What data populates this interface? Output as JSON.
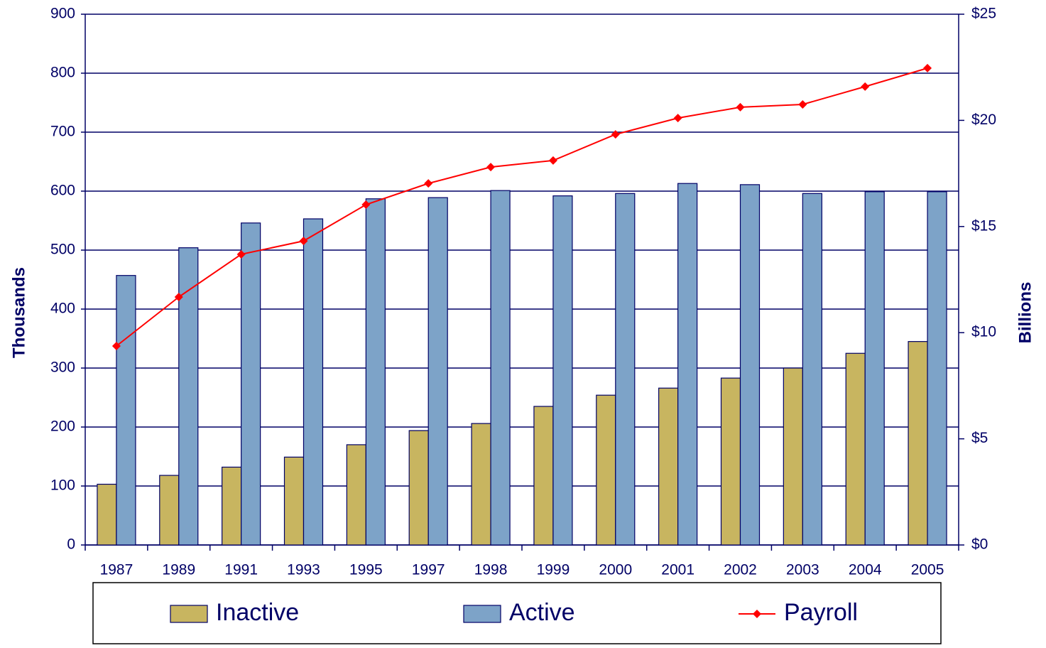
{
  "chart_data": {
    "type": "bar",
    "categories": [
      "1987",
      "1989",
      "1991",
      "1993",
      "1995",
      "1997",
      "1998",
      "1999",
      "2000",
      "2001",
      "2002",
      "2003",
      "2004",
      "2005"
    ],
    "series": [
      {
        "name": "Inactive",
        "type": "bar",
        "color": "#c8b560",
        "values": [
          103,
          118,
          132,
          149,
          170,
          194,
          206,
          235,
          254,
          266,
          283,
          300,
          325,
          345
        ]
      },
      {
        "name": "Active",
        "type": "bar",
        "color": "#7da3c8",
        "values": [
          457,
          504,
          546,
          553,
          587,
          589,
          601,
          592,
          596,
          613,
          611,
          596,
          599,
          599
        ]
      },
      {
        "name": "Payroll",
        "type": "line",
        "axis": "y2",
        "color": "#ff0000",
        "values": [
          9.37,
          11.68,
          13.69,
          14.32,
          16.03,
          17.03,
          17.8,
          18.11,
          19.34,
          20.11,
          20.62,
          20.75,
          21.59,
          22.46
        ]
      }
    ],
    "ylabel": "Thousands",
    "y2label": "Billions",
    "ylim": [
      0,
      900
    ],
    "yticks": [
      0,
      100,
      200,
      300,
      400,
      500,
      600,
      700,
      800,
      900
    ],
    "y2lim": [
      0,
      25
    ],
    "y2ticks": [
      {
        "value": 0,
        "label": "$0"
      },
      {
        "value": 5,
        "label": "$5"
      },
      {
        "value": 10,
        "label": "$10"
      },
      {
        "value": 15,
        "label": "$15"
      },
      {
        "value": 20,
        "label": "$20"
      },
      {
        "value": 25,
        "label": "$25"
      }
    ],
    "grid": true,
    "legend": "bottom"
  }
}
